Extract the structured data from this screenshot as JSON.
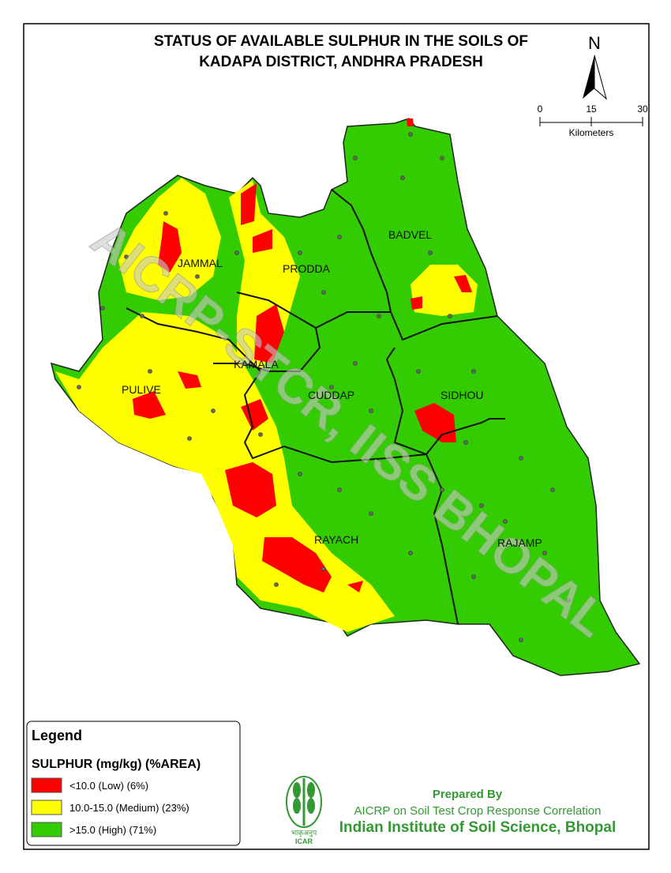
{
  "title": [
    "STATUS OF  AVAILABLE SULPHUR IN THE SOILS OF",
    "KADAPA DISTRICT, ANDHRA PRADESH"
  ],
  "north": "N",
  "scale": {
    "labels": [
      "0",
      "15",
      "30"
    ],
    "unit": "Kilometers"
  },
  "districts": [
    "JAMMAL",
    "PRODDA",
    "BADVEL",
    "KAMALA",
    "PULIVE",
    "CUDDAP",
    "SIDHOU",
    "RAYACH",
    "RAJAMP"
  ],
  "watermark": "AICRP-STCR, IISS BHOPAL",
  "legend": {
    "title": "Legend",
    "subtitle": "SULPHUR (mg/kg) (%AREA)",
    "items": [
      {
        "label": "<10.0 (Low) (6%)",
        "color": "#ff0000"
      },
      {
        "label": "10.0-15.0 (Medium) (23%)",
        "color": "#ffff00"
      },
      {
        "label": ">15.0 (High) (71%)",
        "color": "#33cc00"
      }
    ]
  },
  "credits": [
    "Prepared By",
    "AICRP on Soil Test Crop Response Correlation",
    "Indian Institute of Soil Science, Bhopal"
  ],
  "logo": {
    "hindi": "भाकृअनुप",
    "text": "ICAR"
  }
}
